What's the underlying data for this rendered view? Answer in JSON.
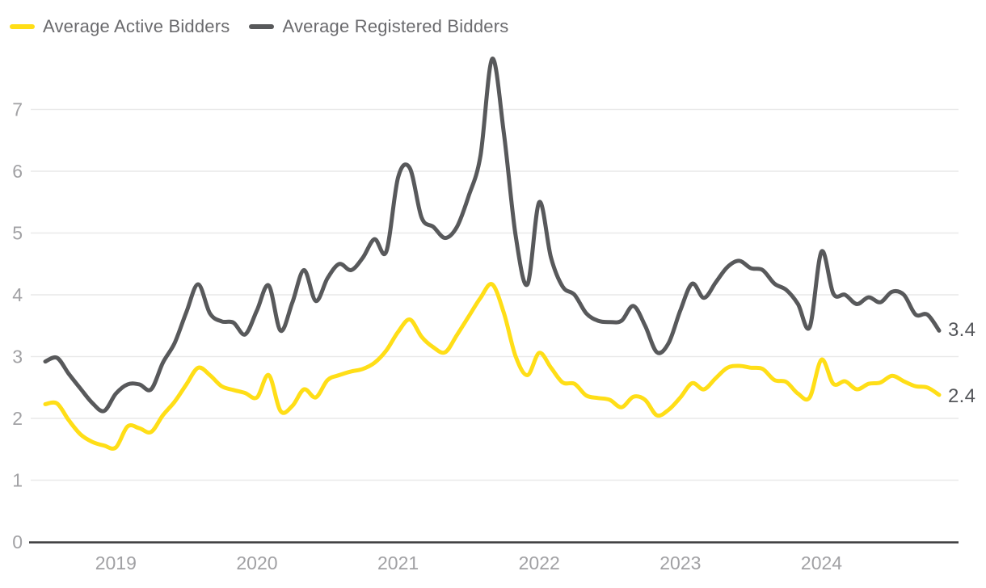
{
  "legend": {
    "items": [
      {
        "label": "Average Active Bidders",
        "color": "#FFDE17"
      },
      {
        "label": "Average Registered Bidders",
        "color": "#58595B"
      }
    ]
  },
  "end_labels": {
    "registered": "3.4",
    "active": "2.4"
  },
  "colors": {
    "active_line": "#FFDE17",
    "registered_line": "#58595B",
    "gridline": "#E9E9E9",
    "axis_line": "#3B3B3D",
    "tick_label": "#A1A1A4",
    "end_label": "#54565A",
    "legend_text": "#6A6A6D",
    "background": "#FFFFFF"
  },
  "chart_data": {
    "type": "line",
    "title": "",
    "xlabel": "",
    "ylabel": "",
    "grid": "horizontal",
    "legend_position": "top-left",
    "ylim": [
      0,
      8.1
    ],
    "yticks": [
      0,
      1,
      2,
      3,
      4,
      5,
      6,
      7
    ],
    "xticks": [
      "2019",
      "2020",
      "2021",
      "2022",
      "2023",
      "2024"
    ],
    "x": [
      "2018-07",
      "2018-08",
      "2018-09",
      "2018-10",
      "2018-11",
      "2018-12",
      "2019-01",
      "2019-02",
      "2019-03",
      "2019-04",
      "2019-05",
      "2019-06",
      "2019-07",
      "2019-08",
      "2019-09",
      "2019-10",
      "2019-11",
      "2019-12",
      "2020-01",
      "2020-02",
      "2020-03",
      "2020-04",
      "2020-05",
      "2020-06",
      "2020-07",
      "2020-08",
      "2020-09",
      "2020-10",
      "2020-11",
      "2020-12",
      "2021-01",
      "2021-02",
      "2021-03",
      "2021-04",
      "2021-05",
      "2021-06",
      "2021-07",
      "2021-08",
      "2021-09",
      "2021-10",
      "2021-11",
      "2021-12",
      "2022-01",
      "2022-02",
      "2022-03",
      "2022-04",
      "2022-05",
      "2022-06",
      "2022-07",
      "2022-08",
      "2022-09",
      "2022-10",
      "2022-11",
      "2022-12",
      "2023-01",
      "2023-02",
      "2023-03",
      "2023-04",
      "2023-05",
      "2023-06",
      "2023-07",
      "2023-08",
      "2023-09",
      "2023-10",
      "2023-11",
      "2023-12",
      "2024-01",
      "2024-02",
      "2024-03",
      "2024-04",
      "2024-05",
      "2024-06",
      "2024-07",
      "2024-08",
      "2024-09",
      "2024-10",
      "2024-11"
    ],
    "series": [
      {
        "name": "Average Active Bidders",
        "color": "#FFDE17",
        "end_label": "2.4",
        "values": [
          2.23,
          2.24,
          1.97,
          1.74,
          1.62,
          1.56,
          1.53,
          1.87,
          1.84,
          1.78,
          2.05,
          2.27,
          2.55,
          2.82,
          2.7,
          2.52,
          2.46,
          2.41,
          2.34,
          2.7,
          2.12,
          2.2,
          2.47,
          2.34,
          2.62,
          2.7,
          2.76,
          2.8,
          2.9,
          3.1,
          3.4,
          3.6,
          3.32,
          3.15,
          3.07,
          3.35,
          3.65,
          3.95,
          4.17,
          3.7,
          3.0,
          2.7,
          3.06,
          2.82,
          2.58,
          2.56,
          2.37,
          2.33,
          2.3,
          2.18,
          2.35,
          2.3,
          2.05,
          2.14,
          2.34,
          2.57,
          2.47,
          2.65,
          2.82,
          2.85,
          2.82,
          2.8,
          2.62,
          2.59,
          2.4,
          2.34,
          2.95,
          2.56,
          2.6,
          2.47,
          2.56,
          2.58,
          2.69,
          2.6,
          2.52,
          2.5,
          2.38
        ]
      },
      {
        "name": "Average Registered Bidders",
        "color": "#58595B",
        "end_label": "3.4",
        "values": [
          2.92,
          2.98,
          2.72,
          2.48,
          2.25,
          2.12,
          2.4,
          2.55,
          2.55,
          2.47,
          2.9,
          3.22,
          3.72,
          4.17,
          3.7,
          3.57,
          3.55,
          3.36,
          3.75,
          4.15,
          3.42,
          3.87,
          4.4,
          3.9,
          4.27,
          4.5,
          4.4,
          4.6,
          4.9,
          4.7,
          5.9,
          6.05,
          5.25,
          5.1,
          4.92,
          5.1,
          5.6,
          6.25,
          7.82,
          6.6,
          4.95,
          4.17,
          5.5,
          4.6,
          4.13,
          4.0,
          3.7,
          3.58,
          3.56,
          3.58,
          3.82,
          3.5,
          3.07,
          3.22,
          3.75,
          4.18,
          3.95,
          4.2,
          4.45,
          4.55,
          4.43,
          4.4,
          4.18,
          4.08,
          3.85,
          3.48,
          4.7,
          4.02,
          4.0,
          3.85,
          3.96,
          3.88,
          4.05,
          4.0,
          3.68,
          3.68,
          3.42
        ]
      }
    ]
  }
}
